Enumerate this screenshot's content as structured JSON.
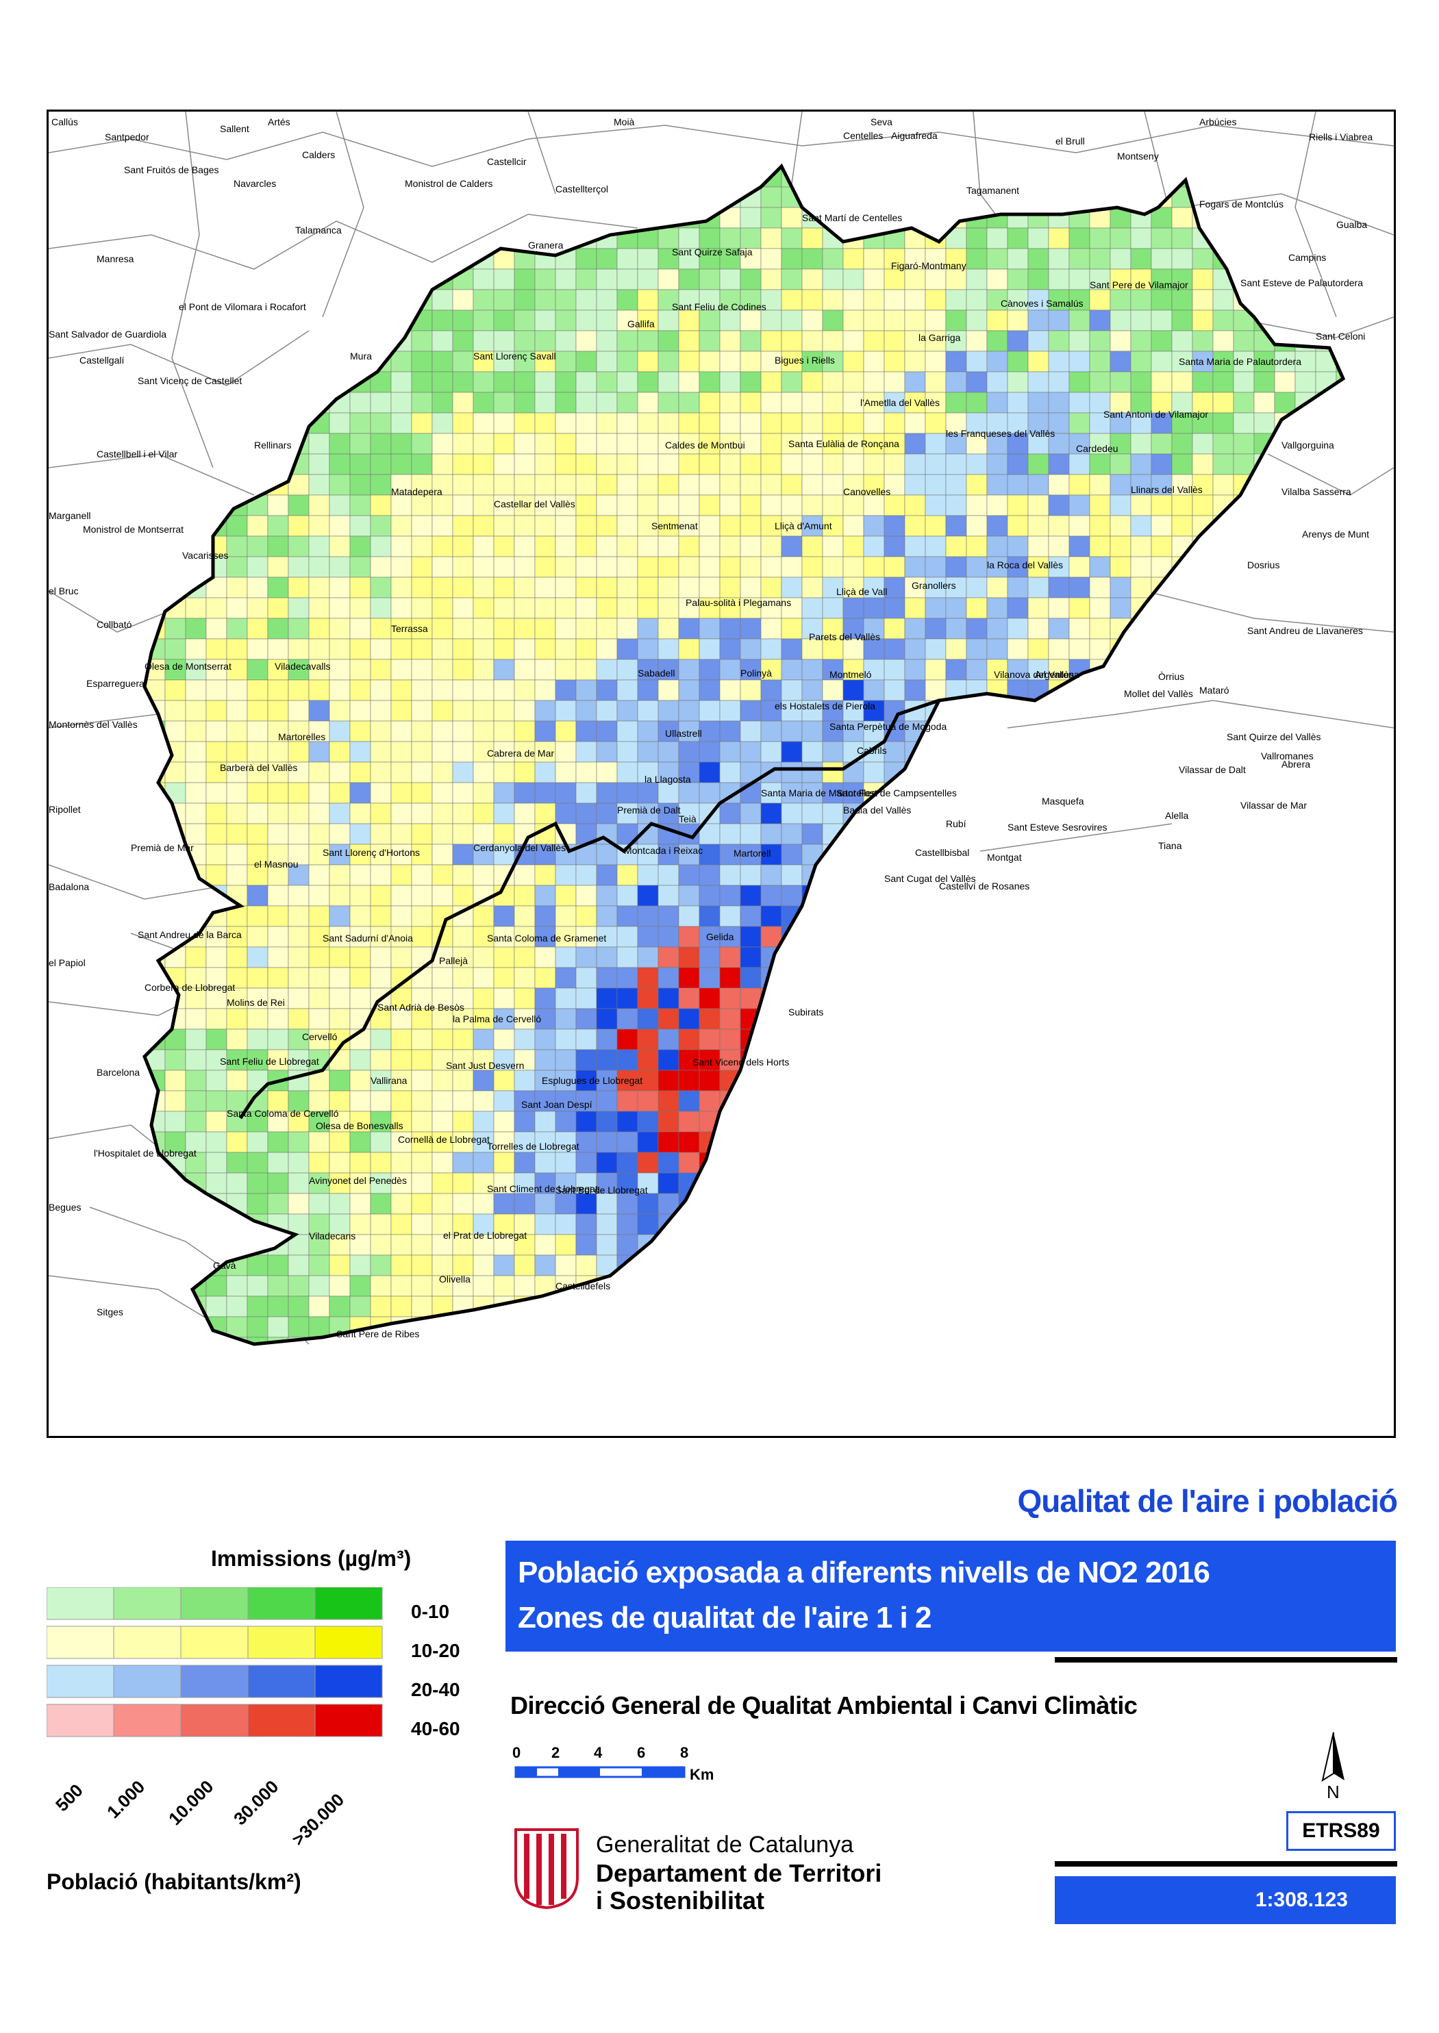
{
  "map": {
    "places": [
      {
        "n": "Callús"
      },
      {
        "n": "Santpedor"
      },
      {
        "n": "Sallent"
      },
      {
        "n": "Artés"
      },
      {
        "n": "Moià"
      },
      {
        "n": "Sant Fruitós de Bages"
      },
      {
        "n": "Navarcles"
      },
      {
        "n": "Calders"
      },
      {
        "n": "Monistrol de Calders"
      },
      {
        "n": "Castellcir"
      },
      {
        "n": "Castellterçol"
      },
      {
        "n": "Seva"
      },
      {
        "n": "Centelles"
      },
      {
        "n": "Aiguafreda"
      },
      {
        "n": "el Brull"
      },
      {
        "n": "Arbúcies"
      },
      {
        "n": "Riells i Viabrea"
      },
      {
        "n": "Montseny"
      },
      {
        "n": "Tagamanent"
      },
      {
        "n": "Sant Martí de Centelles"
      },
      {
        "n": "Fogars de Montclús"
      },
      {
        "n": "Gualba"
      },
      {
        "n": "Talamanca"
      },
      {
        "n": "Granera"
      },
      {
        "n": "Manresa"
      },
      {
        "n": "Campins"
      },
      {
        "n": "Sant Quirze Safaja"
      },
      {
        "n": "Figaró-Montmany"
      },
      {
        "n": "Sant Esteve de Palautordera"
      },
      {
        "n": "Sant Pere de Vilamajor"
      },
      {
        "n": "el Pont de Vilomara i Rocafort"
      },
      {
        "n": "Cànoves i Samalús"
      },
      {
        "n": "Sant Feliu de Codines"
      },
      {
        "n": "Sant Celoni"
      },
      {
        "n": "Sant Salvador de Guardiola"
      },
      {
        "n": "Gallifa"
      },
      {
        "n": "la Garriga"
      },
      {
        "n": "Mura"
      },
      {
        "n": "Castellgalí"
      },
      {
        "n": "Sant Llorenç Savall"
      },
      {
        "n": "Bigues i Riells"
      },
      {
        "n": "Santa Maria de Palautordera"
      },
      {
        "n": "Sant Vicenç de Castellet"
      },
      {
        "n": "l'Ametlla del Vallès"
      },
      {
        "n": "Sant Antoni de Vilamajor"
      },
      {
        "n": "Rellinars"
      },
      {
        "n": "les Franqueses del Vallès"
      },
      {
        "n": "Castellbell i el Vilar"
      },
      {
        "n": "Caldes de Montbui"
      },
      {
        "n": "Santa Eulàlia de Ronçana"
      },
      {
        "n": "Cardedeu"
      },
      {
        "n": "Vallgorguina"
      },
      {
        "n": "Matadepera"
      },
      {
        "n": "Canovelles"
      },
      {
        "n": "Llinars del Vallès"
      },
      {
        "n": "Vilalba Sasserra"
      },
      {
        "n": "Marganell"
      },
      {
        "n": "Castellar del Vallès"
      },
      {
        "n": "Monistrol de Montserrat"
      },
      {
        "n": "Sentmenat"
      },
      {
        "n": "Lliçà d'Amunt"
      },
      {
        "n": "Arenys de Munt"
      },
      {
        "n": "Vacarisses"
      },
      {
        "n": "la Roca del Vallès"
      },
      {
        "n": "Dosrius"
      },
      {
        "n": "el Bruc"
      },
      {
        "n": "Granollers"
      },
      {
        "n": "Lliçà de Vall"
      },
      {
        "n": "Palau-solità i Plegamans"
      },
      {
        "n": "Collbató"
      },
      {
        "n": "Terrassa"
      },
      {
        "n": "Sant Andreu de Llavaneres"
      },
      {
        "n": "Parets del Vallès"
      },
      {
        "n": "Olesa de Montserrat"
      },
      {
        "n": "Viladecavalls"
      },
      {
        "n": "Esparreguera"
      },
      {
        "n": "Sabadell"
      },
      {
        "n": "Polinyà"
      },
      {
        "n": "Montmeló"
      },
      {
        "n": "Argentona"
      },
      {
        "n": "Vilanova del Vallès"
      },
      {
        "n": "Òrrius"
      },
      {
        "n": "Mataró"
      },
      {
        "n": "Mollet del Vallès"
      },
      {
        "n": "els Hostalets de Pierola"
      },
      {
        "n": "Montornès del Vallès"
      },
      {
        "n": "Santa Perpètua de Mogoda"
      },
      {
        "n": "Ullastrell"
      },
      {
        "n": "Martorelles"
      },
      {
        "n": "Cabrils"
      },
      {
        "n": "Sant Quirze del Vallès"
      },
      {
        "n": "Vallromanes"
      },
      {
        "n": "Cabrera de Mar"
      },
      {
        "n": "Vilassar de Dalt"
      },
      {
        "n": "Abrera"
      },
      {
        "n": "Barberà del Vallès"
      },
      {
        "n": "la Llagosta"
      },
      {
        "n": "Santa Maria de Martorelles"
      },
      {
        "n": "Sant Fost de Campsentelles"
      },
      {
        "n": "Badia del Vallès"
      },
      {
        "n": "Premià de Dalt"
      },
      {
        "n": "Masquefa"
      },
      {
        "n": "Vilassar de Mar"
      },
      {
        "n": "Ripollet"
      },
      {
        "n": "Alella"
      },
      {
        "n": "Teià"
      },
      {
        "n": "Rubí"
      },
      {
        "n": "Sant Esteve Sesrovires"
      },
      {
        "n": "Cerdanyola del Vallès"
      },
      {
        "n": "Premià de Mar"
      },
      {
        "n": "Montcada i Reixac"
      },
      {
        "n": "Tiana"
      },
      {
        "n": "Martorell"
      },
      {
        "n": "Castellbisbal"
      },
      {
        "n": "el Masnou"
      },
      {
        "n": "Sant Llorenç d'Hortons"
      },
      {
        "n": "Montgat"
      },
      {
        "n": "Badalona"
      },
      {
        "n": "Castellví de Rosanes"
      },
      {
        "n": "Sant Cugat del Vallès"
      },
      {
        "n": "Sant Andreu de la Barca"
      },
      {
        "n": "Santa Coloma de Gramenet"
      },
      {
        "n": "Sant Sadurní d'Anoia"
      },
      {
        "n": "Gelida"
      },
      {
        "n": "el Papiol"
      },
      {
        "n": "Corbera de Llobregat"
      },
      {
        "n": "Pallejà"
      },
      {
        "n": "Molins de Rei"
      },
      {
        "n": "Sant Adrià de Besòs"
      },
      {
        "n": "la Palma de Cervelló"
      },
      {
        "n": "Subirats"
      },
      {
        "n": "Cervelló"
      },
      {
        "n": "Barcelona"
      },
      {
        "n": "Sant Feliu de Llobregat"
      },
      {
        "n": "Sant Vicenç dels Horts"
      },
      {
        "n": "Sant Just Desvern"
      },
      {
        "n": "Vallirana"
      },
      {
        "n": "Esplugues de Llobregat"
      },
      {
        "n": "Santa Coloma de Cervelló"
      },
      {
        "n": "Sant Joan Despí"
      },
      {
        "n": "Olesa de Bonesvalls"
      },
      {
        "n": "Torrelles de Llobregat"
      },
      {
        "n": "Cornellà de Llobregat"
      },
      {
        "n": "l'Hospitalet de Llobregat"
      },
      {
        "n": "Avinyonet del Penedès"
      },
      {
        "n": "Sant Climent de Llobregat"
      },
      {
        "n": "Sant Boi de Llobregat"
      },
      {
        "n": "Begues"
      },
      {
        "n": "Viladecans"
      },
      {
        "n": "el Prat de Llobregat"
      },
      {
        "n": "Gavà"
      },
      {
        "n": "Olivella"
      },
      {
        "n": "Castelldefels"
      },
      {
        "n": "Sant Pere de Ribes"
      },
      {
        "n": "Sitges"
      }
    ]
  },
  "header": {
    "subtitle": "Qualitat de l'aire i població",
    "title_line1": "Població exposada a diferents nivells de NO2 2016",
    "title_line2": "Zones de qualitat de l'aire 1 i 2",
    "department_line": "Direcció General de Qualitat Ambiental i Canvi Climàtic"
  },
  "legend": {
    "immissions_title": "Immissions (µg/m³)",
    "rows": [
      {
        "label": "0-10",
        "colors": [
          "#ccf7cc",
          "#a6ef9a",
          "#85e57a",
          "#4fd94a",
          "#18c418"
        ]
      },
      {
        "label": "10-20",
        "colors": [
          "#ffffcc",
          "#ffffb0",
          "#fefe88",
          "#fbfb55",
          "#f6f600"
        ]
      },
      {
        "label": "20-40",
        "colors": [
          "#bfe4fa",
          "#9cc1f3",
          "#6f93ea",
          "#3f6ee5",
          "#1446e6"
        ]
      },
      {
        "label": "40-60",
        "colors": [
          "#fcc4c4",
          "#f9918a",
          "#f06b60",
          "#e8442e",
          "#e20000"
        ]
      }
    ],
    "population_title": "Població (habitants/km²)",
    "population_ticks": [
      "500",
      "1.000",
      "10.000",
      "30.000",
      ">30.000"
    ]
  },
  "scalebar": {
    "ticks": [
      "0",
      "2",
      "4",
      "6",
      "8"
    ],
    "unit": "Km"
  },
  "north_label": "N",
  "crs": "ETRS89",
  "scale": "1:308.123",
  "publisher": {
    "name": "Generalitat de Catalunya",
    "dept1": "Departament de Territori",
    "dept2": "i Sostenibilitat"
  }
}
